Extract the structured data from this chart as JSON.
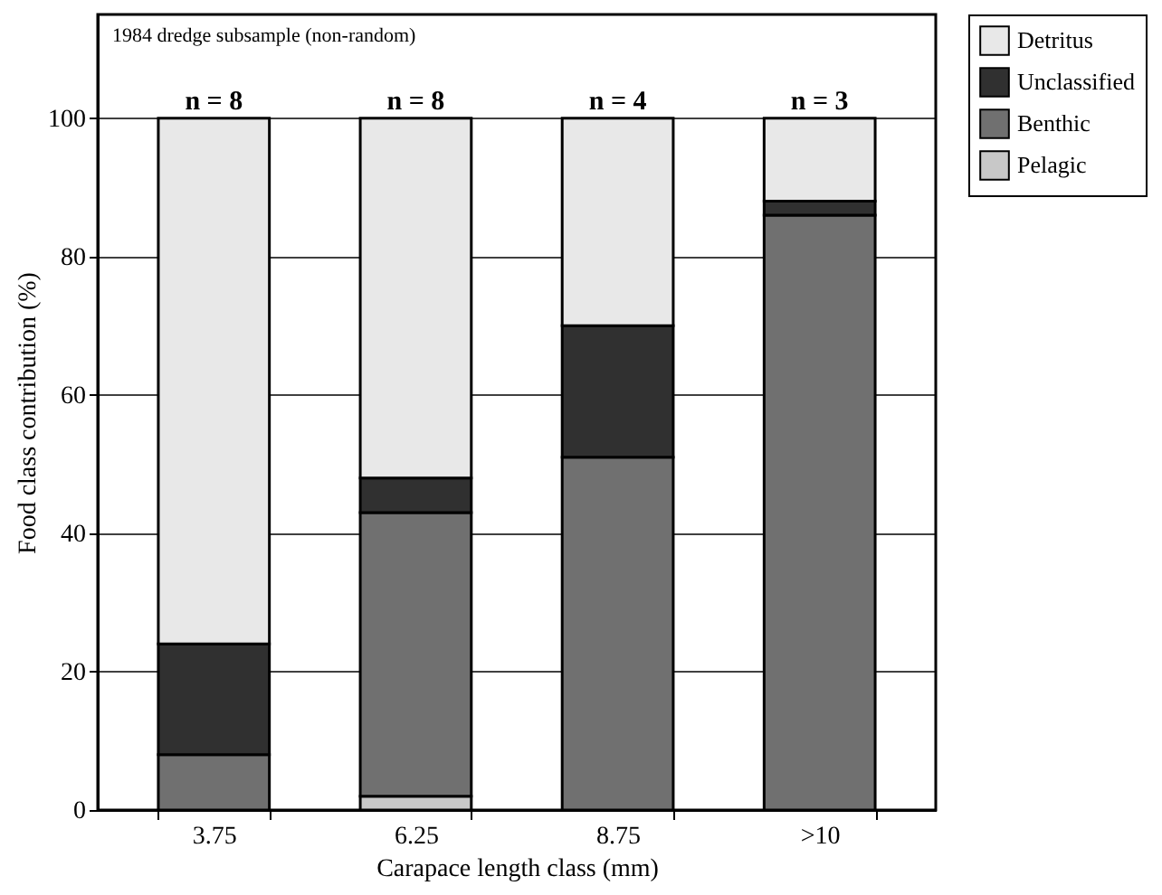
{
  "chart_data": {
    "type": "bar",
    "stacked": true,
    "xlabel": "Carapace length class (mm)",
    "ylabel": "Food class contribution (%)",
    "categories": [
      "3.75",
      "6.25",
      "8.75",
      ">10"
    ],
    "series": [
      {
        "name": "Pelagic",
        "color": "#c8c8c8",
        "values": [
          0,
          2,
          0,
          0
        ]
      },
      {
        "name": "Benthic",
        "color": "#707070",
        "values": [
          8,
          41,
          51,
          86
        ]
      },
      {
        "name": "Unclassified",
        "color": "#303030",
        "values": [
          16,
          5,
          19,
          2
        ]
      },
      {
        "name": "Detritus",
        "color": "#e8e8e8",
        "values": [
          76,
          52,
          30,
          12
        ]
      }
    ],
    "ylim": [
      0,
      115
    ],
    "yticks": [
      0,
      20,
      40,
      60,
      80,
      100
    ],
    "grid": "y",
    "legend": "top right",
    "annotations": [
      "1984 dredge subsample (non-random)",
      {
        "text": "n = 8",
        "x": "3.75",
        "y": 100
      },
      {
        "text": "n = 8",
        "x": "6.25",
        "y": 100
      },
      {
        "text": "n = 4",
        "x": "8.75",
        "y": 100
      },
      {
        "text": "n = 3",
        "x": ">10",
        "y": 100
      }
    ]
  }
}
